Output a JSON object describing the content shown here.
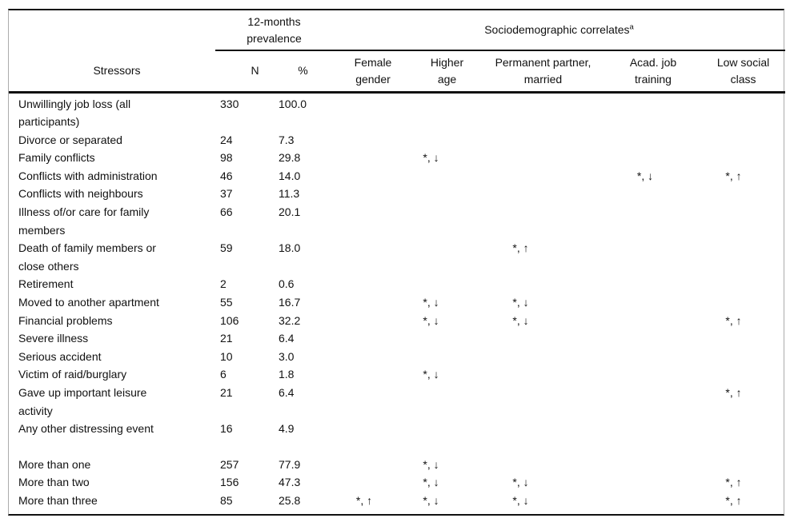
{
  "colors": {
    "background": "#ffffff",
    "text": "#111111",
    "rules": "#111111",
    "frame_border": "#ababab"
  },
  "table": {
    "group_headers": {
      "prevalence": [
        "12-months",
        "prevalence"
      ],
      "correlates": {
        "text": "Sociodemographic correlates",
        "superscript": "a"
      }
    },
    "col_headers": {
      "stressors": "Stressors",
      "n": "N",
      "pct": "%",
      "female": [
        "Female",
        "gender"
      ],
      "higher": [
        "Higher",
        "age"
      ],
      "partner": [
        "Permanent partner,",
        "married"
      ],
      "acad": [
        "Acad. job",
        "training"
      ],
      "social": [
        "Low social",
        "class"
      ]
    },
    "rows": [
      {
        "label": [
          "Unwillingly job loss (all",
          "participants)"
        ],
        "n": "330",
        "pct": "100.0",
        "female": "",
        "higher": "",
        "partner": "",
        "acad": "",
        "social": ""
      },
      {
        "label": [
          "Divorce or separated"
        ],
        "n": "24",
        "pct": "7.3",
        "female": "",
        "higher": "",
        "partner": "",
        "acad": "",
        "social": ""
      },
      {
        "label": [
          "Family conflicts"
        ],
        "n": "98",
        "pct": "29.8",
        "female": "",
        "higher": "*, ↓",
        "partner": "",
        "acad": "",
        "social": ""
      },
      {
        "label": [
          "Conflicts with administration"
        ],
        "n": "46",
        "pct": "14.0",
        "female": "",
        "higher": "",
        "partner": "",
        "acad": "*, ↓",
        "social": "*, ↑"
      },
      {
        "label": [
          "Conflicts with neighbours"
        ],
        "n": "37",
        "pct": "11.3",
        "female": "",
        "higher": "",
        "partner": "",
        "acad": "",
        "social": ""
      },
      {
        "label": [
          "Illness of/or care for family",
          "members"
        ],
        "n": "66",
        "pct": "20.1",
        "female": "",
        "higher": "",
        "partner": "",
        "acad": "",
        "social": ""
      },
      {
        "label": [
          "Death of family members or",
          "close others"
        ],
        "n": "59",
        "pct": "18.0",
        "female": "",
        "higher": "",
        "partner": "*, ↑",
        "acad": "",
        "social": ""
      },
      {
        "label": [
          "Retirement"
        ],
        "n": "2",
        "pct": "0.6",
        "female": "",
        "higher": "",
        "partner": "",
        "acad": "",
        "social": ""
      },
      {
        "label": [
          "Moved to another apartment"
        ],
        "n": "55",
        "pct": "16.7",
        "female": "",
        "higher": "*, ↓",
        "partner": "*, ↓",
        "acad": "",
        "social": ""
      },
      {
        "label": [
          "Financial problems"
        ],
        "n": "106",
        "pct": "32.2",
        "female": "",
        "higher": "*, ↓",
        "partner": "*, ↓",
        "acad": "",
        "social": "*, ↑"
      },
      {
        "label": [
          "Severe illness"
        ],
        "n": "21",
        "pct": "6.4",
        "female": "",
        "higher": "",
        "partner": "",
        "acad": "",
        "social": ""
      },
      {
        "label": [
          "Serious accident"
        ],
        "n": "10",
        "pct": "3.0",
        "female": "",
        "higher": "",
        "partner": "",
        "acad": "",
        "social": ""
      },
      {
        "label": [
          "Victim of raid/burglary"
        ],
        "n": "6",
        "pct": "1.8",
        "female": "",
        "higher": "*, ↓",
        "partner": "",
        "acad": "",
        "social": ""
      },
      {
        "label": [
          "Gave up important leisure",
          "activity"
        ],
        "n": "21",
        "pct": "6.4",
        "female": "",
        "higher": "",
        "partner": "",
        "acad": "",
        "social": "*, ↑"
      },
      {
        "label": [
          "Any other distressing event"
        ],
        "n": "16",
        "pct": "4.9",
        "female": "",
        "higher": "",
        "partner": "",
        "acad": "",
        "social": ""
      },
      {
        "spacer": true
      },
      {
        "label": [
          "More than one"
        ],
        "n": "257",
        "pct": "77.9",
        "female": "",
        "higher": "*, ↓",
        "partner": "",
        "acad": "",
        "social": ""
      },
      {
        "label": [
          "More than two"
        ],
        "n": "156",
        "pct": "47.3",
        "female": "",
        "higher": "*, ↓",
        "partner": "*, ↓",
        "acad": "",
        "social": "*, ↑"
      },
      {
        "label": [
          "More than three"
        ],
        "n": "85",
        "pct": "25.8",
        "female": "*, ↑",
        "higher": "*, ↓",
        "partner": "*, ↓",
        "acad": "",
        "social": "*, ↑"
      }
    ]
  }
}
